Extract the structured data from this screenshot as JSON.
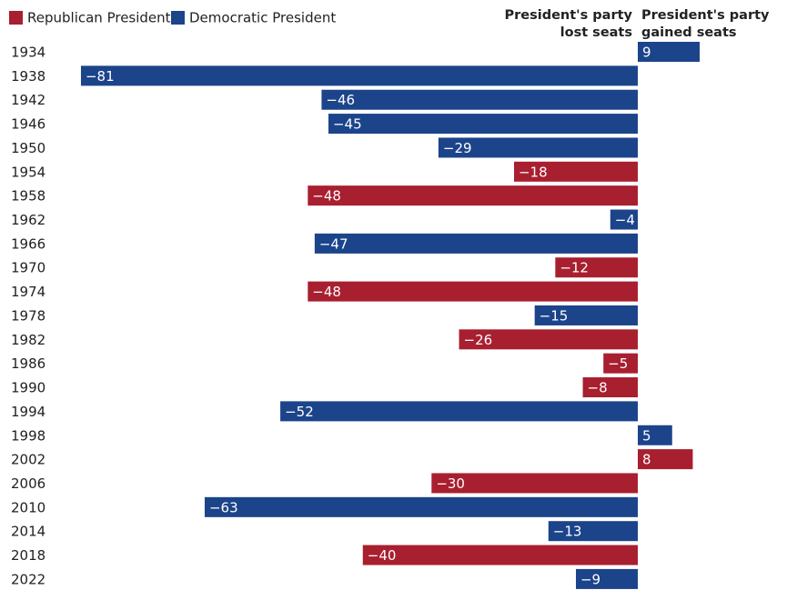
{
  "chart_data": {
    "type": "bar",
    "orientation": "horizontal",
    "legend": [
      {
        "name": "Republican President",
        "color": "#a81f2f"
      },
      {
        "name": "Democratic President",
        "color": "#1c448a"
      }
    ],
    "annotations": {
      "lost": [
        "President's party",
        "lost seats"
      ],
      "gained": [
        "President's party",
        "gained seats"
      ]
    },
    "categories": [
      "1934",
      "1938",
      "1942",
      "1946",
      "1950",
      "1954",
      "1958",
      "1962",
      "1966",
      "1970",
      "1974",
      "1978",
      "1982",
      "1986",
      "1990",
      "1994",
      "1998",
      "2002",
      "2006",
      "2010",
      "2014",
      "2018",
      "2022"
    ],
    "values": [
      9,
      -81,
      -46,
      -45,
      -29,
      -18,
      -48,
      -4,
      -47,
      -12,
      -48,
      -15,
      -26,
      -5,
      -8,
      -52,
      5,
      8,
      -30,
      -63,
      -13,
      -40,
      -9
    ],
    "value_labels": [
      "9",
      "−81",
      "−46",
      "−45",
      "−29",
      "−18",
      "−48",
      "−4",
      "−47",
      "−12",
      "−48",
      "−15",
      "−26",
      "−5",
      "−8",
      "−52",
      "5",
      "8",
      "−30",
      "−63",
      "−13",
      "−40",
      "−9"
    ],
    "colors": [
      "#1c448a",
      "#1c448a",
      "#1c448a",
      "#1c448a",
      "#1c448a",
      "#a81f2f",
      "#a81f2f",
      "#1c448a",
      "#1c448a",
      "#a81f2f",
      "#a81f2f",
      "#1c448a",
      "#a81f2f",
      "#a81f2f",
      "#a81f2f",
      "#1c448a",
      "#1c448a",
      "#a81f2f",
      "#a81f2f",
      "#1c448a",
      "#1c448a",
      "#a81f2f",
      "#1c448a"
    ]
  }
}
